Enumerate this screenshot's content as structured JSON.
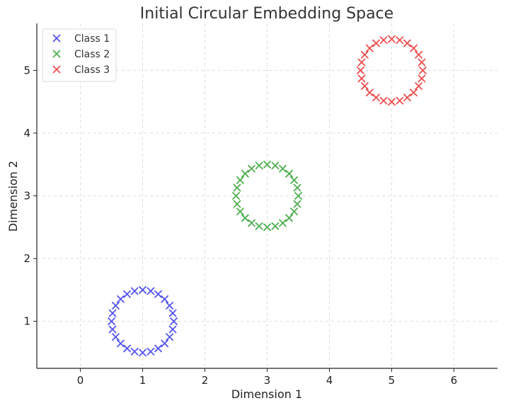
{
  "chart_data": {
    "type": "scatter",
    "title": "Initial Circular Embedding Space",
    "xlabel": "Dimension 1",
    "ylabel": "Dimension 2",
    "xlim": [
      -0.7,
      6.7
    ],
    "ylim": [
      0.25,
      5.75
    ],
    "xticks": [
      0,
      1,
      2,
      3,
      4,
      5,
      6
    ],
    "yticks": [
      1,
      2,
      3,
      4,
      5
    ],
    "grid": true,
    "legend": "top-left",
    "marker": "x",
    "series": [
      {
        "name": "Class 1",
        "color": "#5555ee",
        "center": [
          1,
          1
        ],
        "radius": 0.5,
        "count": 24
      },
      {
        "name": "Class 2",
        "color": "#4fae4f",
        "center": [
          3,
          3
        ],
        "radius": 0.5,
        "count": 24
      },
      {
        "name": "Class 3",
        "color": "#ee4f4f",
        "center": [
          5,
          5
        ],
        "radius": 0.5,
        "count": 24
      }
    ]
  }
}
